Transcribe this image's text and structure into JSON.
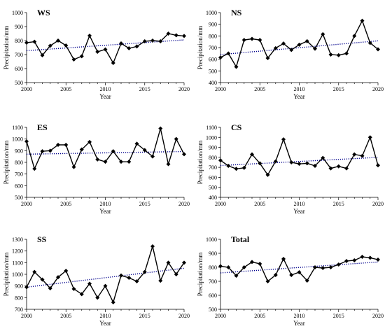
{
  "chart_data": [
    {
      "type": "line",
      "title": "WS",
      "xlabel": "Year",
      "ylabel": "Precipitation/mm",
      "xlim": [
        2000,
        2020
      ],
      "ylim": [
        500,
        1000
      ],
      "yticks": [
        500,
        600,
        700,
        800,
        900,
        1000
      ],
      "xticks": [
        2000,
        2005,
        2010,
        2015,
        2020
      ],
      "x": [
        2000,
        2001,
        2002,
        2003,
        2004,
        2005,
        2006,
        2007,
        2008,
        2009,
        2010,
        2011,
        2012,
        2013,
        2014,
        2015,
        2016,
        2017,
        2018,
        2019,
        2020
      ],
      "series": [
        {
          "values": [
            785,
            792,
            695,
            763,
            800,
            765,
            665,
            688,
            835,
            720,
            737,
            640,
            780,
            745,
            758,
            795,
            800,
            795,
            850,
            838,
            833
          ],
          "color": "#000000",
          "marker": "diamond"
        }
      ],
      "trendline": {
        "start": 728,
        "end": 805,
        "color": "#00008b",
        "style": "dotted"
      },
      "grid": false
    },
    {
      "type": "line",
      "title": "NS",
      "xlabel": "Year",
      "ylabel": "Precipitation/mm",
      "xlim": [
        2000,
        2020
      ],
      "ylim": [
        400,
        1000
      ],
      "yticks": [
        400,
        500,
        600,
        700,
        800,
        900,
        1000
      ],
      "xticks": [
        2000,
        2005,
        2010,
        2015,
        2020
      ],
      "x": [
        2000,
        2001,
        2002,
        2003,
        2004,
        2005,
        2006,
        2007,
        2008,
        2009,
        2010,
        2011,
        2012,
        2013,
        2014,
        2015,
        2016,
        2017,
        2018,
        2019,
        2020
      ],
      "series": [
        {
          "values": [
            615,
            650,
            535,
            765,
            775,
            765,
            610,
            695,
            735,
            680,
            725,
            755,
            690,
            815,
            640,
            635,
            650,
            800,
            930,
            740,
            685
          ],
          "color": "#000000",
          "marker": "diamond"
        }
      ],
      "trendline": {
        "start": 640,
        "end": 758,
        "color": "#00008b",
        "style": "dotted"
      },
      "grid": false
    },
    {
      "type": "line",
      "title": "ES",
      "xlabel": "Year",
      "ylabel": "Precipitation/mm",
      "xlim": [
        2000,
        2020
      ],
      "ylim": [
        500,
        1100
      ],
      "yticks": [
        500,
        600,
        700,
        800,
        900,
        1000,
        1100
      ],
      "xticks": [
        2000,
        2005,
        2010,
        2015,
        2020
      ],
      "x": [
        2000,
        2001,
        2002,
        2003,
        2004,
        2005,
        2006,
        2007,
        2008,
        2009,
        2010,
        2011,
        2012,
        2013,
        2014,
        2015,
        2016,
        2017,
        2018,
        2019,
        2020
      ],
      "series": [
        {
          "values": [
            980,
            745,
            895,
            900,
            950,
            950,
            760,
            910,
            975,
            825,
            805,
            895,
            805,
            805,
            960,
            905,
            850,
            1090,
            785,
            1000,
            870
          ],
          "color": "#000000",
          "marker": "diamond"
        }
      ],
      "trendline": {
        "start": 870,
        "end": 893,
        "color": "#00008b",
        "style": "dotted"
      },
      "grid": false
    },
    {
      "type": "line",
      "title": "CS",
      "xlabel": "Year",
      "ylabel": "Precipitation/mm",
      "xlim": [
        2000,
        2020
      ],
      "ylim": [
        400,
        1100
      ],
      "yticks": [
        400,
        500,
        600,
        700,
        800,
        900,
        1000,
        1100
      ],
      "xticks": [
        2000,
        2005,
        2010,
        2015,
        2020
      ],
      "x": [
        2000,
        2001,
        2002,
        2003,
        2004,
        2005,
        2006,
        2007,
        2008,
        2009,
        2010,
        2011,
        2012,
        2013,
        2014,
        2015,
        2016,
        2017,
        2018,
        2019,
        2020
      ],
      "series": [
        {
          "values": [
            770,
            715,
            685,
            695,
            830,
            740,
            625,
            760,
            980,
            750,
            735,
            740,
            715,
            795,
            690,
            710,
            690,
            830,
            815,
            1000,
            720
          ],
          "color": "#000000",
          "marker": "diamond"
        }
      ],
      "trendline": {
        "start": 718,
        "end": 800,
        "color": "#00008b",
        "style": "dotted"
      },
      "grid": false
    },
    {
      "type": "line",
      "title": "SS",
      "xlabel": "Year",
      "ylabel": "Precipitation/mm",
      "xlim": [
        2000,
        2020
      ],
      "ylim": [
        700,
        1300
      ],
      "yticks": [
        700,
        800,
        900,
        1000,
        1100,
        1200,
        1300
      ],
      "xticks": [
        2000,
        2005,
        2010,
        2015,
        2020
      ],
      "x": [
        2000,
        2001,
        2002,
        2003,
        2004,
        2005,
        2006,
        2007,
        2008,
        2009,
        2010,
        2011,
        2012,
        2013,
        2014,
        2015,
        2016,
        2017,
        2018,
        2019,
        2020
      ],
      "series": [
        {
          "values": [
            890,
            1020,
            955,
            880,
            975,
            1030,
            875,
            830,
            920,
            800,
            900,
            760,
            990,
            970,
            940,
            1020,
            1240,
            945,
            1100,
            1000,
            1100
          ],
          "color": "#000000",
          "marker": "diamond"
        }
      ],
      "trendline": {
        "start": 890,
        "end": 1052,
        "color": "#00008b",
        "style": "dotted"
      },
      "grid": false
    },
    {
      "type": "line",
      "title": "Total",
      "xlabel": "Year",
      "ylabel": "Precipitation/mm",
      "xlim": [
        2000,
        2020
      ],
      "ylim": [
        500,
        1000
      ],
      "yticks": [
        500,
        600,
        700,
        800,
        900,
        1000
      ],
      "xticks": [
        2000,
        2005,
        2010,
        2015,
        2020
      ],
      "x": [
        2000,
        2001,
        2002,
        2003,
        2004,
        2005,
        2006,
        2007,
        2008,
        2009,
        2010,
        2011,
        2012,
        2013,
        2014,
        2015,
        2016,
        2017,
        2018,
        2019,
        2020
      ],
      "series": [
        {
          "values": [
            808,
            800,
            740,
            800,
            838,
            825,
            700,
            745,
            860,
            745,
            765,
            705,
            800,
            795,
            800,
            820,
            845,
            850,
            875,
            868,
            855
          ],
          "color": "#000000",
          "marker": "diamond"
        }
      ],
      "trendline": {
        "start": 760,
        "end": 838,
        "color": "#00008b",
        "style": "dotted"
      },
      "grid": false
    }
  ]
}
